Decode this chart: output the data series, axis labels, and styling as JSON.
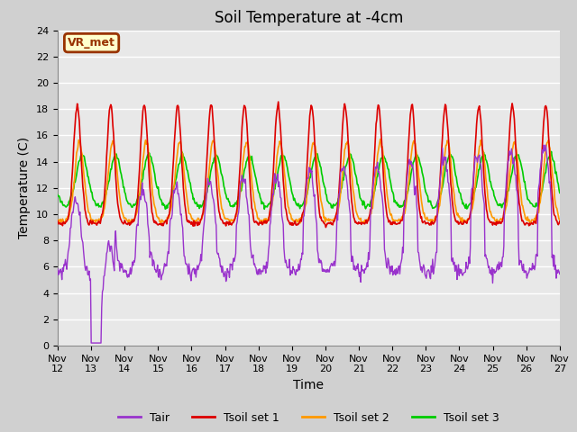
{
  "title": "Soil Temperature at -4cm",
  "xlabel": "Time",
  "ylabel": "Temperature (C)",
  "ylim": [
    0,
    24
  ],
  "yticks": [
    0,
    2,
    4,
    6,
    8,
    10,
    12,
    14,
    16,
    18,
    20,
    22,
    24
  ],
  "xticklabels": [
    "Nov 12",
    "Nov 13",
    "Nov 14",
    "Nov 15",
    "Nov 16",
    "Nov 17",
    "Nov 18",
    "Nov 19",
    "Nov 20",
    "Nov 21",
    "Nov 22",
    "Nov 23",
    "Nov 24",
    "Nov 25",
    "Nov 26",
    "Nov 27"
  ],
  "colors": {
    "tair": "#9933cc",
    "tsoil1": "#dd0000",
    "tsoil2": "#ff9900",
    "tsoil3": "#00cc00"
  },
  "legend_labels": [
    "Tair",
    "Tsoil set 1",
    "Tsoil set 2",
    "Tsoil set 3"
  ],
  "annotation_text": "VR_met",
  "annotation_bg": "#ffffcc",
  "annotation_border": "#993300",
  "fig_bg": "#d0d0d0",
  "plot_bg": "#e8e8e8",
  "grid_color": "#ffffff",
  "title_fontsize": 12,
  "axis_fontsize": 10,
  "tick_fontsize": 8,
  "n_days": 15,
  "hours_per_day": 48
}
